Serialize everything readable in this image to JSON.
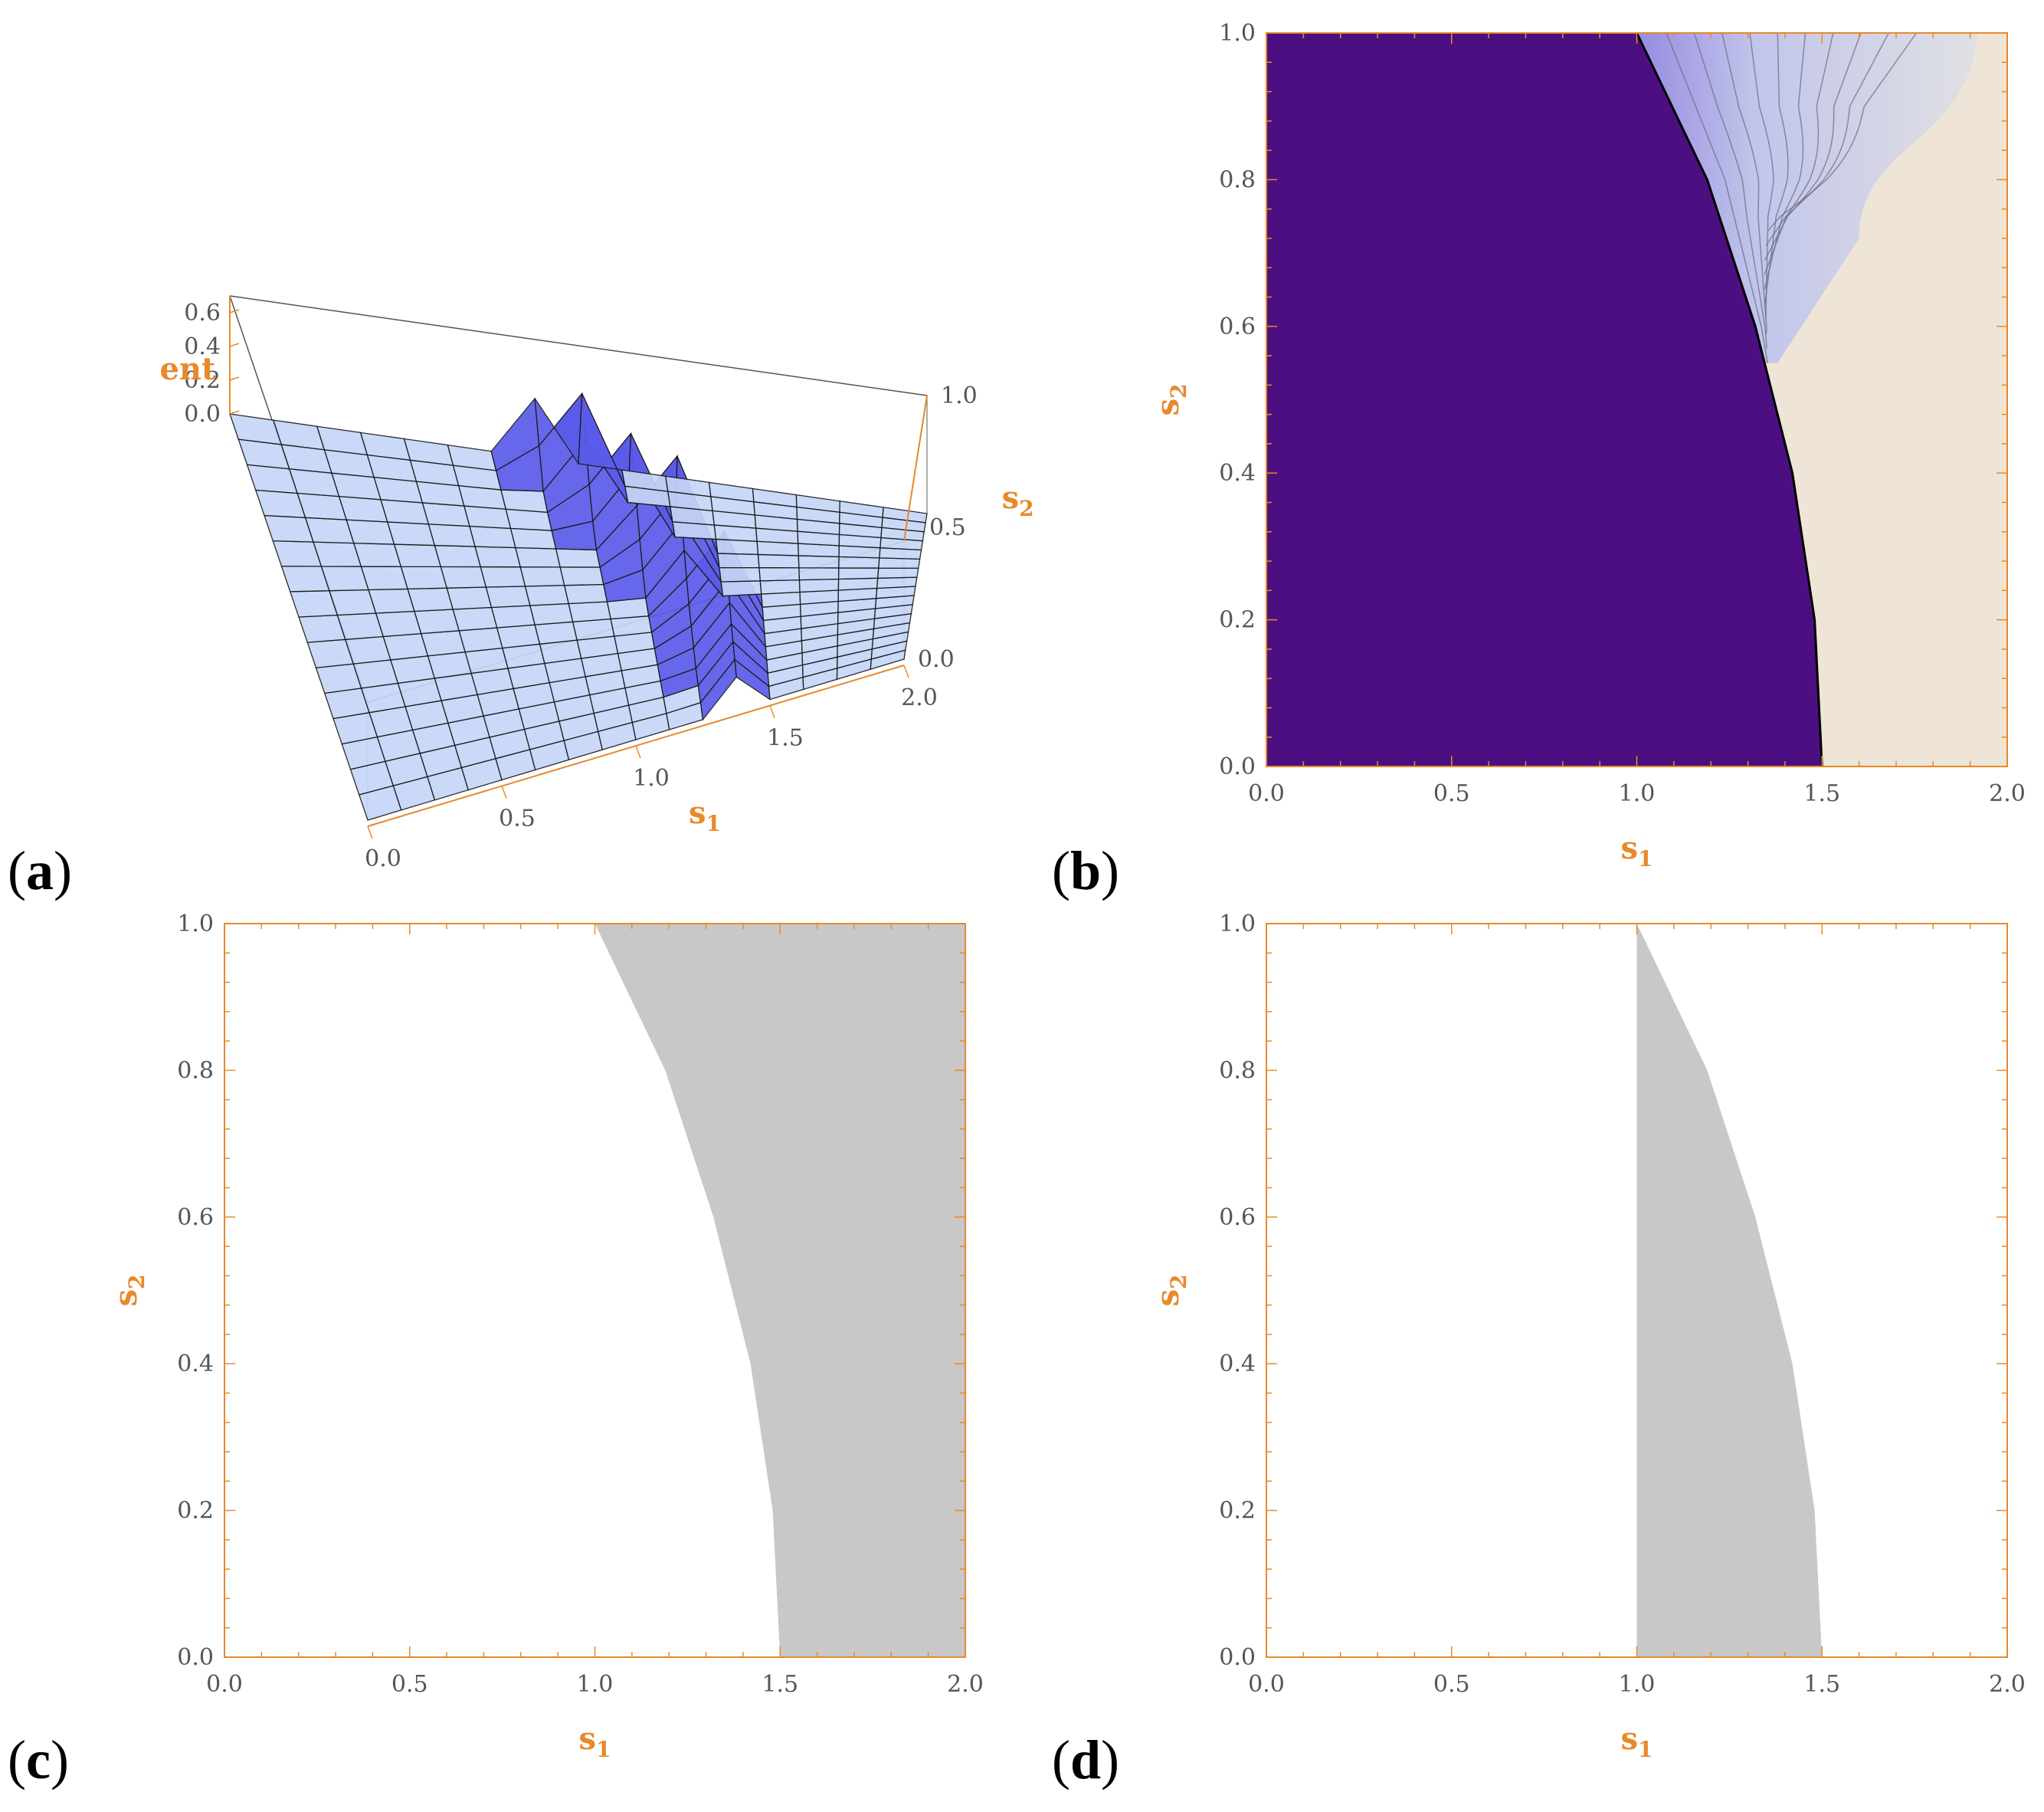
{
  "colors": {
    "axis": "#E8892C",
    "region_gray": "#C8C8C8",
    "contour_dark": "#4B0F82",
    "contour_light": "#EFE5D6",
    "surface_light": "#C5D6F7",
    "surface_dark": "#5B5BEA"
  },
  "chart_data": [
    {
      "panel": "a",
      "type": "surface3d",
      "label": "(a)",
      "xlabel": "s1",
      "ylabel": "s2",
      "zlabel": "ent",
      "xticks": [
        "0.0",
        "0.5",
        "1.0",
        "1.5",
        "2.0"
      ],
      "yticks": [
        "0.0",
        "0.5",
        "1.0"
      ],
      "zticks": [
        "0.0",
        "0.2",
        "0.4",
        "0.6"
      ],
      "xlim": [
        0,
        2
      ],
      "ylim": [
        0,
        1
      ],
      "zlim": [
        0,
        0.7
      ],
      "boundary_s1_at_s2": [
        [
          0,
          1.5
        ],
        [
          0.2,
          1.48
        ],
        [
          0.4,
          1.42
        ],
        [
          0.6,
          1.32
        ],
        [
          0.8,
          1.19
        ],
        [
          1.0,
          1.0
        ]
      ]
    },
    {
      "panel": "b",
      "type": "contour",
      "label": "(b)",
      "xlabel": "s1",
      "ylabel": "s2",
      "xticks": [
        "0.0",
        "0.5",
        "1.0",
        "1.5",
        "2.0"
      ],
      "yticks": [
        "0.0",
        "0.2",
        "0.4",
        "0.6",
        "0.8",
        "1.0"
      ],
      "xlim": [
        0,
        2
      ],
      "ylim": [
        0,
        1
      ],
      "boundary_s1_at_s2": [
        [
          0,
          1.5
        ],
        [
          0.2,
          1.48
        ],
        [
          0.4,
          1.42
        ],
        [
          0.6,
          1.32
        ],
        [
          0.8,
          1.19
        ],
        [
          1.0,
          1.0
        ]
      ]
    },
    {
      "panel": "c",
      "type": "region",
      "label": "(c)",
      "xlabel": "s1",
      "ylabel": "s2",
      "xticks": [
        "0.0",
        "0.5",
        "1.0",
        "1.5",
        "2.0"
      ],
      "yticks": [
        "0.0",
        "0.2",
        "0.4",
        "0.6",
        "0.8",
        "1.0"
      ],
      "xlim": [
        0,
        2
      ],
      "ylim": [
        0,
        1
      ],
      "left_boundary_s1_at_s2": [
        [
          0,
          1.5
        ],
        [
          0.2,
          1.48
        ],
        [
          0.4,
          1.42
        ],
        [
          0.6,
          1.32
        ],
        [
          0.8,
          1.19
        ],
        [
          1.0,
          1.0
        ]
      ],
      "right_boundary_s1": 2.0
    },
    {
      "panel": "d",
      "type": "region",
      "label": "(d)",
      "xlabel": "s1",
      "ylabel": "s2",
      "xticks": [
        "0.0",
        "0.5",
        "1.0",
        "1.5",
        "2.0"
      ],
      "yticks": [
        "0.0",
        "0.2",
        "0.4",
        "0.6",
        "0.8",
        "1.0"
      ],
      "xlim": [
        0,
        2
      ],
      "ylim": [
        0,
        1
      ],
      "left_boundary_s1": 1.0,
      "right_boundary_s1_at_s2": [
        [
          0,
          1.5
        ],
        [
          0.2,
          1.48
        ],
        [
          0.4,
          1.42
        ],
        [
          0.6,
          1.32
        ],
        [
          0.8,
          1.19
        ],
        [
          1.0,
          1.0
        ]
      ]
    }
  ]
}
